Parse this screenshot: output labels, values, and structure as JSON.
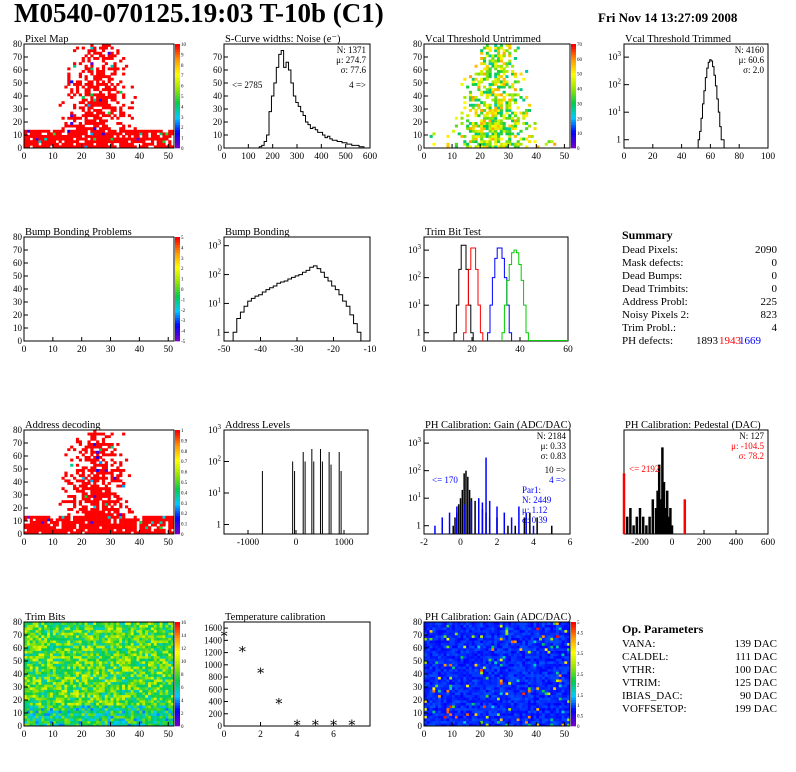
{
  "header": {
    "title": "M0540-070125.19:03 T-10b (C1)",
    "timestamp": "Fri Nov 14 13:27:09 2008"
  },
  "colors": {
    "red": "#ff0000",
    "blue": "#0000ff",
    "green": "#00cc00",
    "black": "#000000"
  },
  "summary": {
    "title": "Summary",
    "rows": [
      {
        "label": "Dead Pixels:",
        "value": "2090"
      },
      {
        "label": "Mask defects:",
        "value": "0"
      },
      {
        "label": "Dead Bumps:",
        "value": "0"
      },
      {
        "label": "Dead Trimbits:",
        "value": "0"
      },
      {
        "label": "Address Probl:",
        "value": "225"
      },
      {
        "label": "Noisy Pixels 2:",
        "value": "823"
      },
      {
        "label": "Trim Probl.:",
        "value": "4"
      }
    ],
    "ph_defects": {
      "label": "PH defects:",
      "v1": "1893",
      "v2": "1943",
      "v3": "1669"
    }
  },
  "op_params": {
    "title": "Op. Parameters",
    "rows": [
      {
        "label": "VANA:",
        "value": "139 DAC"
      },
      {
        "label": "CALDEL:",
        "value": "111 DAC"
      },
      {
        "label": "VTHR:",
        "value": "100 DAC"
      },
      {
        "label": "VTRIM:",
        "value": "125 DAC"
      },
      {
        "label": "IBIAS_DAC:",
        "value": "90 DAC"
      },
      {
        "label": "VOFFSETOP:",
        "value": "199 DAC"
      }
    ]
  },
  "chart_data": [
    {
      "id": "pixel-map",
      "type": "heatmap",
      "title": "Pixel Map",
      "palette": "red",
      "xlim": [
        0,
        52
      ],
      "ylim": [
        0,
        80
      ],
      "xticks": [
        0,
        10,
        20,
        30,
        40,
        50
      ],
      "yticks": [
        0,
        10,
        20,
        30,
        40,
        50,
        60,
        70,
        80
      ],
      "zticks": [
        0,
        1,
        2,
        3,
        4,
        5,
        6,
        7,
        8,
        9,
        10
      ]
    },
    {
      "id": "scurve",
      "type": "bar",
      "title": "S-Curve widths: Noise (e⁻)",
      "xlim": [
        0,
        600
      ],
      "ylim": [
        0,
        80
      ],
      "xticks": [
        0,
        100,
        200,
        300,
        400,
        500,
        600
      ],
      "yticks": [
        0,
        10,
        20,
        30,
        40,
        50,
        60,
        70
      ],
      "stats": [
        "N: 1371",
        "μ: 274.7",
        "σ: 77.6"
      ],
      "underflow": "<= 2785",
      "overflow": "4 =>",
      "x": [
        150,
        160,
        170,
        180,
        190,
        200,
        210,
        220,
        230,
        240,
        250,
        260,
        270,
        280,
        290,
        300,
        310,
        320,
        330,
        340,
        350,
        360,
        370,
        380,
        390,
        400,
        410,
        420,
        430,
        440,
        450,
        460,
        470,
        480,
        490,
        500,
        510,
        520,
        530,
        540,
        550,
        560,
        570
      ],
      "values": [
        1,
        2,
        5,
        10,
        28,
        40,
        50,
        62,
        72,
        75,
        62,
        66,
        60,
        50,
        40,
        35,
        32,
        28,
        25,
        20,
        18,
        15,
        16,
        14,
        12,
        12,
        10,
        8,
        9,
        7,
        6,
        6,
        5,
        5,
        4,
        4,
        3,
        3,
        2,
        2,
        2,
        1,
        1
      ]
    },
    {
      "id": "vcal-untrimmed",
      "type": "heatmap",
      "title": "Vcal Threshold Untrimmed",
      "palette": "mixed",
      "xlim": [
        0,
        52
      ],
      "ylim": [
        0,
        80
      ],
      "xticks": [
        0,
        10,
        20,
        30,
        40,
        50
      ],
      "yticks": [
        0,
        10,
        20,
        30,
        40,
        50,
        60,
        70,
        80
      ],
      "zticks": [
        0,
        10,
        20,
        30,
        40,
        50,
        60,
        70
      ]
    },
    {
      "id": "vcal-trimmed",
      "type": "bar",
      "title": "Vcal Threshold Trimmed",
      "log": true,
      "xlim": [
        0,
        100
      ],
      "ylim": [
        0.5,
        3000
      ],
      "xticks": [
        0,
        20,
        40,
        60,
        80,
        100
      ],
      "stats": [
        "N: 4160",
        "μ: 60.6",
        "σ: 2.0"
      ],
      "x": [
        52,
        53,
        54,
        55,
        56,
        57,
        58,
        59,
        60,
        61,
        62,
        63,
        64,
        65,
        66,
        67,
        68,
        69
      ],
      "values": [
        1,
        2,
        6,
        20,
        60,
        180,
        400,
        650,
        800,
        720,
        450,
        220,
        90,
        30,
        10,
        3,
        1,
        1
      ]
    },
    {
      "id": "bump-problems",
      "type": "heatmap",
      "title": "Bump Bonding Problems",
      "palette": "none",
      "xlim": [
        0,
        52
      ],
      "ylim": [
        0,
        80
      ],
      "xticks": [
        0,
        10,
        20,
        30,
        40,
        50
      ],
      "yticks": [
        0,
        10,
        20,
        30,
        40,
        50,
        60,
        70,
        80
      ],
      "zticks": [
        -5,
        -4,
        -3,
        -2,
        -1,
        0,
        1,
        2,
        3,
        4,
        5
      ]
    },
    {
      "id": "bump-bonding",
      "type": "bar",
      "title": "Bump Bonding",
      "log": true,
      "xlim": [
        -50,
        -10
      ],
      "ylim": [
        0.5,
        2000
      ],
      "xticks": [
        -50,
        -40,
        -30,
        -20,
        -10
      ],
      "x": [
        -47,
        -46,
        -45,
        -44,
        -43,
        -42,
        -41,
        -40,
        -39,
        -38,
        -37,
        -36,
        -35,
        -34,
        -33,
        -32,
        -31,
        -30,
        -29,
        -28,
        -27,
        -26,
        -25,
        -24,
        -23,
        -22,
        -21,
        -20,
        -19,
        -18,
        -17,
        -16,
        -15,
        -14,
        -13
      ],
      "values": [
        1,
        3,
        5,
        8,
        12,
        15,
        18,
        20,
        25,
        30,
        35,
        40,
        50,
        55,
        60,
        70,
        80,
        90,
        100,
        120,
        140,
        180,
        200,
        160,
        120,
        80,
        60,
        40,
        30,
        20,
        12,
        8,
        4,
        2,
        1
      ]
    },
    {
      "id": "trim-bit-test",
      "type": "line",
      "title": "Trim Bit Test",
      "log": true,
      "xlim": [
        0,
        60
      ],
      "ylim": [
        0.5,
        3000
      ],
      "xticks": [
        0,
        20,
        40,
        60
      ],
      "series": [
        {
          "color": "black",
          "x": [
            13,
            14,
            15,
            16,
            17,
            18,
            19,
            20
          ],
          "values": [
            1,
            10,
            200,
            1500,
            1500,
            200,
            10,
            1
          ]
        },
        {
          "color": "red",
          "x": [
            17,
            18,
            19,
            20,
            21,
            22,
            23,
            24
          ],
          "values": [
            1,
            10,
            200,
            1200,
            1200,
            200,
            10,
            1
          ]
        },
        {
          "color": "blue",
          "x": [
            27,
            28,
            29,
            30,
            31,
            32,
            33,
            34,
            35,
            36
          ],
          "values": [
            1,
            10,
            100,
            500,
            1200,
            1200,
            500,
            100,
            10,
            1
          ]
        },
        {
          "color": "green",
          "x": [
            33,
            34,
            35,
            36,
            37,
            38,
            39,
            40,
            41,
            42,
            43
          ],
          "values": [
            1,
            10,
            80,
            300,
            800,
            1000,
            800,
            300,
            80,
            10,
            1
          ]
        }
      ]
    },
    {
      "id": "address-decoding",
      "type": "heatmap",
      "title": "Address decoding",
      "palette": "red",
      "xlim": [
        0,
        52
      ],
      "ylim": [
        0,
        80
      ],
      "xticks": [
        0,
        10,
        20,
        30,
        40,
        50
      ],
      "yticks": [
        0,
        10,
        20,
        30,
        40,
        50,
        60,
        70,
        80
      ],
      "zticks": [
        0,
        0.1,
        0.2,
        0.3,
        0.4,
        0.5,
        0.6,
        0.7,
        0.8,
        0.9,
        1
      ]
    },
    {
      "id": "address-levels",
      "type": "bar",
      "title": "Address Levels",
      "log": true,
      "xlim": [
        -1500,
        1500
      ],
      "ylim": [
        0.5,
        1000
      ],
      "xticks": [
        -1000,
        0,
        1000
      ],
      "x": [
        -700,
        -70,
        -30,
        150,
        190,
        330,
        370,
        510,
        550,
        690,
        730,
        900,
        940
      ],
      "values": [
        50,
        100,
        50,
        200,
        100,
        250,
        100,
        250,
        100,
        200,
        80,
        200,
        50
      ]
    },
    {
      "id": "ph-gain",
      "type": "bar",
      "title": "PH Calibration: Gain (ADC/DAC)",
      "log": true,
      "xlim": [
        -2,
        6
      ],
      "ylim": [
        0.5,
        3000
      ],
      "xticks": [
        -2,
        0,
        2,
        4,
        6
      ],
      "stats": [
        "N: 2184",
        "μ: 0.33",
        "σ: 0.83"
      ],
      "overflow": "10 =>",
      "overflow2": "4 =>",
      "underflow": "<= 170",
      "series": [
        {
          "color": "black",
          "x": [
            -0.4,
            -0.3,
            -0.2,
            -0.1,
            0,
            0.1,
            0.2,
            0.3,
            0.4,
            0.5,
            0.6,
            0.8,
            1.0,
            1.2,
            1.4,
            1.6,
            2.0,
            2.6,
            3.0,
            3.5,
            3.8,
            4.2,
            5.0
          ],
          "values": [
            1,
            2,
            3,
            6,
            10,
            20,
            80,
            100,
            60,
            20,
            10,
            8,
            6,
            4,
            3,
            2,
            2,
            1,
            1,
            2,
            3,
            2,
            1
          ]
        },
        {
          "color": "blue",
          "x": [
            -1.4,
            -1.0,
            -0.6,
            -0.2,
            0.2,
            0.6,
            1.0,
            1.2,
            1.4,
            1.6,
            2.0,
            2.4,
            2.8,
            3.2,
            3.6,
            4.0
          ],
          "values": [
            1,
            2,
            3,
            5,
            6,
            8,
            10,
            7,
            300,
            8,
            5,
            3,
            2,
            5,
            3,
            1
          ]
        }
      ],
      "fit": [
        "Par1:",
        "N: 2449",
        "μ: 1.12",
        "σ: 0.39"
      ]
    },
    {
      "id": "ph-pedestal",
      "type": "bar",
      "title": "PH Calibration: Pedestal (DAC)",
      "xlim": [
        -300,
        600
      ],
      "ylim": [
        0,
        12
      ],
      "xticks": [
        -200,
        0,
        200,
        400,
        600
      ],
      "stats": [
        "N: 127"
      ],
      "red_stats": [
        "μ: -104.5",
        "σ: 78.2"
      ],
      "underflow": "<= 2192",
      "series": [
        {
          "color": "black",
          "x": [
            -280,
            -260,
            -240,
            -220,
            -200,
            -180,
            -160,
            -140,
            -120,
            -100,
            -90,
            -80,
            -70,
            -60,
            -50,
            -40,
            -30,
            -20,
            -10,
            0
          ],
          "values": [
            2,
            3,
            1,
            2,
            3,
            2,
            1,
            2,
            4,
            3,
            5,
            8,
            4,
            10,
            6,
            3,
            5,
            2,
            3,
            1
          ]
        },
        {
          "color": "red",
          "x": [
            -300,
            80
          ],
          "values": [
            7,
            4
          ]
        }
      ]
    },
    {
      "id": "trim-bits",
      "type": "heatmap",
      "title": "Trim Bits",
      "palette": "yellow-green",
      "xlim": [
        0,
        52
      ],
      "ylim": [
        0,
        80
      ],
      "xticks": [
        0,
        10,
        20,
        30,
        40,
        50
      ],
      "yticks": [
        0,
        10,
        20,
        30,
        40,
        50,
        60,
        70,
        80
      ],
      "zticks": [
        0,
        2,
        4,
        6,
        8,
        10,
        12,
        14,
        16
      ]
    },
    {
      "id": "temp-calibration",
      "type": "scatter",
      "title": "Temperature calibration",
      "xlim": [
        0,
        8
      ],
      "ylim": [
        0,
        1700
      ],
      "xticks": [
        0,
        2,
        4,
        6
      ],
      "yticks": [
        0,
        200,
        400,
        600,
        800,
        1000,
        1200,
        1400,
        1600
      ],
      "x": [
        0,
        1,
        2,
        3,
        4,
        5,
        6,
        7
      ],
      "values": [
        1500,
        1250,
        900,
        400,
        50,
        50,
        50,
        50
      ]
    },
    {
      "id": "ph-gain-map",
      "type": "heatmap",
      "title": "PH Calibration: Gain (ADC/DAC)",
      "palette": "blue",
      "xlim": [
        0,
        52
      ],
      "ylim": [
        0,
        80
      ],
      "xticks": [
        0,
        10,
        20,
        30,
        40,
        50
      ],
      "yticks": [
        0,
        10,
        20,
        30,
        40,
        50,
        60,
        70,
        80
      ],
      "zticks": [
        0,
        0.5,
        1,
        1.5,
        2,
        2.5,
        3,
        3.5,
        4,
        4.5,
        5
      ]
    }
  ]
}
